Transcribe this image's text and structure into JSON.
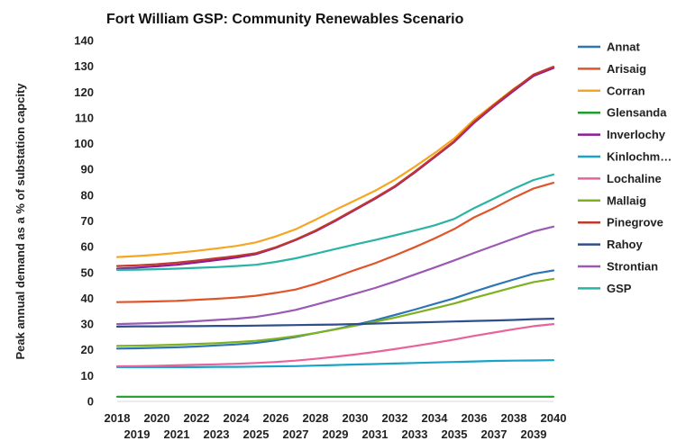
{
  "chart_data": {
    "type": "line",
    "title": "Fort William GSP: Community Renewables Scenario",
    "xlabel": "",
    "ylabel": "Peak annual demand as a % of substation capcity",
    "ylim": [
      0,
      140
    ],
    "yticks": [
      0,
      10,
      20,
      30,
      40,
      50,
      60,
      70,
      80,
      90,
      100,
      110,
      120,
      130,
      140
    ],
    "xlim": [
      2018,
      2040
    ],
    "xticks_top": [
      "2018",
      "2020",
      "2022",
      "2024",
      "2026",
      "2028",
      "2030",
      "2032",
      "2034",
      "2036",
      "2038",
      "2040"
    ],
    "xticks_bottom": [
      "2019",
      "2021",
      "2023",
      "2025",
      "2027",
      "2029",
      "2031",
      "2033",
      "2035",
      "2037",
      "2039"
    ],
    "grid": false,
    "legend_position": "right",
    "x": [
      2018,
      2019,
      2020,
      2021,
      2022,
      2023,
      2024,
      2025,
      2026,
      2027,
      2028,
      2029,
      2030,
      2031,
      2032,
      2033,
      2034,
      2035,
      2036,
      2037,
      2038,
      2039,
      2040
    ],
    "series": [
      {
        "name": "Annat",
        "color": "#2e75b6",
        "values": [
          20.5,
          20.6,
          20.8,
          21.0,
          21.3,
          21.7,
          22.1,
          22.7,
          23.7,
          25.0,
          26.5,
          28.0,
          29.7,
          31.5,
          33.5,
          35.6,
          37.8,
          40.0,
          42.6,
          45.0,
          47.3,
          49.5,
          50.8
        ]
      },
      {
        "name": "Arisaig",
        "color": "#e0542a",
        "values": [
          38.5,
          38.6,
          38.8,
          39.0,
          39.4,
          39.8,
          40.3,
          41.0,
          42.1,
          43.4,
          45.6,
          48.2,
          51.0,
          53.6,
          56.6,
          59.8,
          63.2,
          66.9,
          71.4,
          75.0,
          79.0,
          82.6,
          84.8
        ]
      },
      {
        "name": "Corran",
        "color": "#f5a623",
        "values": [
          56.0,
          56.4,
          56.9,
          57.6,
          58.4,
          59.3,
          60.3,
          61.7,
          64.0,
          66.8,
          70.5,
          74.3,
          78.0,
          81.7,
          86.0,
          91.0,
          96.3,
          102.0,
          109.3,
          115.3,
          121.3,
          126.2,
          129.5
        ]
      },
      {
        "name": "Glensanda",
        "color": "#1f9e2c",
        "values": [
          1.8,
          1.8,
          1.8,
          1.8,
          1.8,
          1.8,
          1.8,
          1.8,
          1.8,
          1.8,
          1.8,
          1.8,
          1.8,
          1.8,
          1.8,
          1.8,
          1.8,
          1.8,
          1.8,
          1.8,
          1.8,
          1.8,
          1.8
        ]
      },
      {
        "name": "Inverlochy",
        "color": "#8e1a9a",
        "values": [
          51.5,
          51.9,
          52.4,
          53.0,
          53.9,
          54.8,
          55.8,
          57.1,
          59.6,
          62.6,
          66.0,
          70.0,
          74.3,
          78.6,
          83.2,
          88.8,
          94.7,
          100.7,
          108.1,
          114.5,
          120.5,
          126.3,
          129.3
        ]
      },
      {
        "name": "Kinlochm…",
        "color": "#1aa3c8",
        "values": [
          13.3,
          13.3,
          13.3,
          13.3,
          13.3,
          13.4,
          13.4,
          13.5,
          13.6,
          13.7,
          13.9,
          14.1,
          14.3,
          14.5,
          14.7,
          14.9,
          15.1,
          15.3,
          15.5,
          15.7,
          15.8,
          15.9,
          16.0
        ]
      },
      {
        "name": "Lochaline",
        "color": "#e8639a",
        "values": [
          13.6,
          13.7,
          13.8,
          14.0,
          14.2,
          14.4,
          14.6,
          14.9,
          15.3,
          15.8,
          16.5,
          17.3,
          18.2,
          19.2,
          20.3,
          21.5,
          22.7,
          24.0,
          25.4,
          26.7,
          28.0,
          29.2,
          30.0
        ]
      },
      {
        "name": "Mallaig",
        "color": "#7db21e",
        "values": [
          21.5,
          21.6,
          21.8,
          22.0,
          22.3,
          22.6,
          23.0,
          23.5,
          24.3,
          25.3,
          26.5,
          27.9,
          29.4,
          30.9,
          32.5,
          34.3,
          36.1,
          38.0,
          40.2,
          42.2,
          44.3,
          46.3,
          47.5
        ]
      },
      {
        "name": "Pinegrove",
        "color": "#c0392b",
        "values": [
          52.5,
          52.8,
          53.2,
          53.8,
          54.6,
          55.5,
          56.4,
          57.5,
          59.8,
          62.8,
          66.3,
          70.3,
          74.6,
          78.9,
          83.5,
          89.1,
          95.0,
          101.0,
          108.5,
          115.0,
          121.0,
          126.8,
          129.8
        ]
      },
      {
        "name": "Rahoy",
        "color": "#2f4f8a",
        "values": [
          29.0,
          29.1,
          29.1,
          29.2,
          29.2,
          29.3,
          29.3,
          29.4,
          29.5,
          29.6,
          29.7,
          29.8,
          30.0,
          30.2,
          30.4,
          30.6,
          30.8,
          31.0,
          31.2,
          31.4,
          31.6,
          31.9,
          32.1
        ]
      },
      {
        "name": "Strontian",
        "color": "#9b59b6",
        "values": [
          30.0,
          30.2,
          30.4,
          30.7,
          31.1,
          31.6,
          32.1,
          32.8,
          34.0,
          35.5,
          37.5,
          39.6,
          41.8,
          44.0,
          46.5,
          49.2,
          51.9,
          54.7,
          57.6,
          60.4,
          63.2,
          65.9,
          67.8
        ]
      },
      {
        "name": "GSP",
        "color": "#2ab3a6",
        "values": [
          51.0,
          51.1,
          51.3,
          51.5,
          51.8,
          52.1,
          52.5,
          53.0,
          54.1,
          55.5,
          57.3,
          59.1,
          60.9,
          62.6,
          64.4,
          66.3,
          68.3,
          70.8,
          75.0,
          78.7,
          82.5,
          85.9,
          88.0
        ]
      }
    ]
  }
}
